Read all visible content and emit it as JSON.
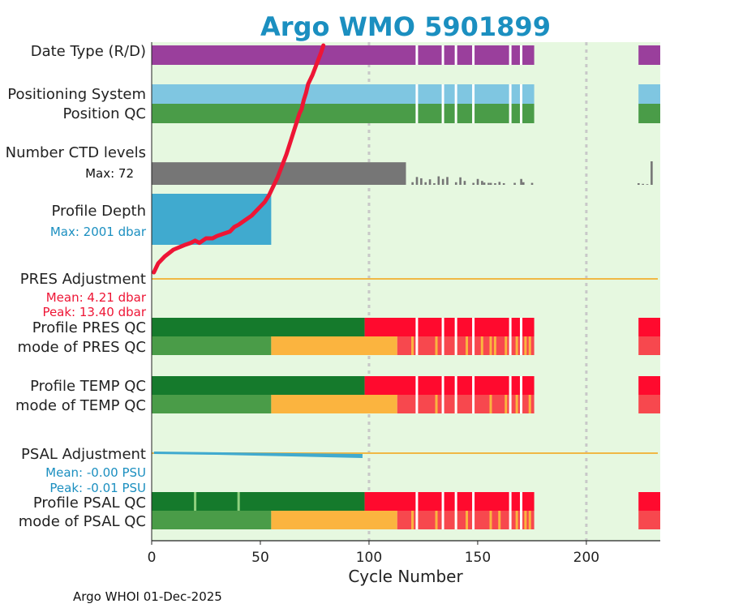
{
  "chart_data": {
    "type": "bar",
    "title": "Argo WMO 5901899",
    "xlabel": "Cycle Number",
    "xlim": [
      0,
      234
    ],
    "x_ticks": [
      0,
      50,
      100,
      150,
      200
    ],
    "footer": "Argo WHOI 01-Dec-2025",
    "colors": {
      "background": "#e6f8e0",
      "date_type": "#9a3f9c",
      "positioning_system": "#7fc6e1",
      "qc_good": "#4a9c48",
      "qc_profile_a": "#157a2c",
      "qc_bad": "#ff0a2e",
      "qc_light_bad": "#f7484e",
      "qc_probably_good": "#fbb43f",
      "ctd": "#767676",
      "depth": "#40aacf",
      "adjustment_line": "#f0b845",
      "psal_adjustment": "#40aacf",
      "trajectory": "#ee1535",
      "red_text": "#ee1535",
      "blue_text": "#1b8fc0"
    },
    "rows": {
      "date_type": {
        "label": "Date Type (R/D)"
      },
      "positioning_system": {
        "label": "Positioning System"
      },
      "position_qc": {
        "label": "Position QC"
      },
      "ctd_levels": {
        "label": "Number CTD levels",
        "max_label": "Max: 72",
        "max": 72
      },
      "profile_depth": {
        "label": "Profile Depth",
        "max_label": "Max: 2001 dbar",
        "max": 2001
      },
      "pres_adjustment": {
        "label": "PRES Adjustment",
        "mean_label": "Mean: 4.21 dbar",
        "peak_label": "Peak: 13.40 dbar"
      },
      "profile_pres_qc": {
        "label": "Profile PRES QC"
      },
      "mode_pres_qc": {
        "label": "mode of PRES QC"
      },
      "profile_temp_qc": {
        "label": "Profile TEMP QC"
      },
      "mode_temp_qc": {
        "label": "mode of TEMP QC"
      },
      "psal_adjustment": {
        "label": "PSAL Adjustment",
        "mean_label": "Mean: -0.00 PSU",
        "peak_label": "Peak: -0.01 PSU"
      },
      "profile_psal_qc": {
        "label": "Profile PSAL QC"
      },
      "mode_psal_qc": {
        "label": "mode of PSAL QC"
      }
    },
    "series": {
      "data_ranges": [
        [
          0,
          176
        ],
        [
          224,
          234
        ]
      ],
      "gaps_date_type": [
        122,
        134,
        140,
        148,
        165,
        170
      ],
      "gaps_positioning": [
        122,
        134,
        140,
        148,
        165,
        170
      ],
      "ctd_levels_full_until": 117,
      "ctd_levels_tail": [
        [
          120,
          8
        ],
        [
          122,
          24
        ],
        [
          124,
          20
        ],
        [
          126,
          8
        ],
        [
          128,
          17
        ],
        [
          130,
          5
        ],
        [
          132,
          26
        ],
        [
          134,
          18
        ],
        [
          136,
          24
        ],
        [
          140,
          8
        ],
        [
          142,
          23
        ],
        [
          144,
          12
        ],
        [
          148,
          6
        ],
        [
          150,
          18
        ],
        [
          152,
          12
        ],
        [
          153,
          7
        ],
        [
          155,
          6
        ],
        [
          156,
          6
        ],
        [
          158,
          5
        ],
        [
          160,
          9
        ],
        [
          162,
          5
        ],
        [
          167,
          6
        ],
        [
          170,
          18
        ],
        [
          171,
          8
        ],
        [
          175,
          6
        ],
        [
          224,
          5
        ],
        [
          226,
          3
        ],
        [
          228,
          2
        ],
        [
          230,
          72
        ]
      ],
      "profile_depth_until": 55,
      "profile_pres_qc": [
        [
          0,
          98,
          "qc_profile_a"
        ],
        [
          98,
          176,
          "qc_bad"
        ],
        [
          224,
          234,
          "qc_bad"
        ]
      ],
      "mode_pres_qc": [
        [
          0,
          55,
          "qc_good"
        ],
        [
          55,
          113,
          "qc_probably_good"
        ],
        [
          113,
          176,
          "qc_light_bad"
        ],
        [
          224,
          234,
          "qc_light_bad"
        ]
      ],
      "mode_pres_qc_marks": [
        120,
        131,
        140,
        145,
        152,
        156,
        158,
        163,
        168,
        172,
        174
      ],
      "profile_temp_qc": [
        [
          0,
          98,
          "qc_profile_a"
        ],
        [
          98,
          176,
          "qc_bad"
        ],
        [
          224,
          234,
          "qc_bad"
        ]
      ],
      "mode_temp_qc": [
        [
          0,
          55,
          "qc_good"
        ],
        [
          55,
          113,
          "qc_probably_good"
        ],
        [
          113,
          176,
          "qc_light_bad"
        ],
        [
          224,
          234,
          "qc_light_bad"
        ]
      ],
      "mode_temp_qc_marks": [
        131,
        140,
        156,
        163,
        168,
        174
      ],
      "profile_psal_qc": [
        [
          0,
          98,
          "qc_profile_a"
        ],
        [
          98,
          176,
          "qc_bad"
        ],
        [
          224,
          234,
          "qc_bad"
        ]
      ],
      "profile_psal_qc_marks": [
        20,
        40
      ],
      "mode_psal_qc": [
        [
          0,
          55,
          "qc_good"
        ],
        [
          55,
          113,
          "qc_probably_good"
        ],
        [
          113,
          176,
          "qc_light_bad"
        ],
        [
          224,
          234,
          "qc_light_bad"
        ]
      ],
      "mode_psal_qc_marks": [
        120,
        131,
        140,
        145,
        156,
        160,
        168,
        172,
        174
      ],
      "white_gaps_qc": [
        122,
        134,
        140,
        148,
        165,
        170
      ],
      "trajectory": [
        [
          1,
          0.0
        ],
        [
          3,
          0.04
        ],
        [
          6,
          0.07
        ],
        [
          10,
          0.1
        ],
        [
          15,
          0.12
        ],
        [
          18,
          0.13
        ],
        [
          20,
          0.14
        ],
        [
          22,
          0.13
        ],
        [
          25,
          0.15
        ],
        [
          28,
          0.15
        ],
        [
          30,
          0.16
        ],
        [
          33,
          0.17
        ],
        [
          36,
          0.18
        ],
        [
          38,
          0.2
        ],
        [
          40,
          0.21
        ],
        [
          43,
          0.23
        ],
        [
          46,
          0.25
        ],
        [
          48,
          0.27
        ],
        [
          50,
          0.29
        ],
        [
          52,
          0.31
        ],
        [
          54,
          0.34
        ],
        [
          56,
          0.38
        ],
        [
          58,
          0.42
        ],
        [
          60,
          0.47
        ],
        [
          62,
          0.52
        ],
        [
          64,
          0.58
        ],
        [
          66,
          0.64
        ],
        [
          68,
          0.7
        ],
        [
          69,
          0.72
        ],
        [
          70,
          0.76
        ],
        [
          71,
          0.79
        ],
        [
          72,
          0.83
        ],
        [
          74,
          0.87
        ],
        [
          76,
          0.92
        ],
        [
          78,
          0.97
        ],
        [
          79,
          1.0
        ]
      ]
    }
  }
}
